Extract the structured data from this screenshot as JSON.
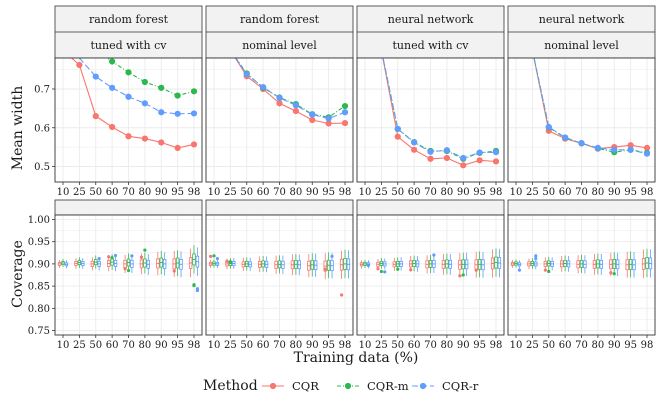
{
  "chart_data": {
    "type": "faceted line and box plot",
    "x_ticks": [
      "10",
      "25",
      "50",
      "60",
      "70",
      "80",
      "90",
      "95",
      "98"
    ],
    "x_label": "Training data (%)",
    "y_labels": {
      "width": "Mean width",
      "coverage": "Coverage"
    },
    "width_ylim": [
      0.46,
      0.78
    ],
    "width_ticks": [
      "0.5",
      "0.6",
      "0.7"
    ],
    "coverage_ylim": [
      0.74,
      1.01
    ],
    "coverage_ticks": [
      "0.75",
      "0.80",
      "0.85",
      "0.90",
      "0.95",
      "1.00"
    ],
    "legend": {
      "title": "Method",
      "items": [
        {
          "name": "CQR",
          "color": "#F8766D",
          "dash": "solid"
        },
        {
          "name": "CQR-m",
          "color": "#2DB84E",
          "dash": "dashdot"
        },
        {
          "name": "CQR-r",
          "color": "#619CFF",
          "dash": "longdash"
        }
      ]
    },
    "facets": [
      {
        "model": "random forest",
        "setting": "tuned with cv",
        "width": [
          {
            "method": "CQR",
            "x": [
              25,
              50,
              60,
              70,
              80,
              90,
              95,
              98
            ],
            "y": [
              0.762,
              0.63,
              0.602,
              0.578,
              0.572,
              0.562,
              0.548,
              0.557
            ],
            "lead": 0.8
          },
          {
            "method": "CQR-m",
            "x": [
              60,
              70,
              80,
              90,
              95,
              98
            ],
            "y": [
              0.771,
              0.743,
              0.718,
              0.703,
              0.683,
              0.694
            ],
            "lead": 0.8
          },
          {
            "method": "CQR-r",
            "x": [
              50,
              60,
              70,
              80,
              90,
              95,
              98
            ],
            "y": [
              0.732,
              0.703,
              0.68,
              0.663,
              0.64,
              0.636,
              0.637
            ],
            "lead": 0.78
          }
        ],
        "coverage": [
          {
            "method": "CQR",
            "med": [
              0.9,
              0.901,
              0.9,
              0.901,
              0.9,
              0.9,
              0.901,
              0.9,
              0.902
            ],
            "out": [
              [
                60,
                0.916
              ],
              [
                70,
                0.889
              ],
              [
                80,
                0.915
              ],
              [
                95,
                0.884
              ]
            ]
          },
          {
            "method": "CQR-m",
            "med": [
              0.902,
              0.903,
              0.904,
              0.904,
              0.903,
              0.902,
              0.903,
              0.902,
              0.91
            ],
            "out": [
              [
                60,
                0.914
              ],
              [
                80,
                0.931
              ],
              [
                70,
                0.885
              ],
              [
                98,
                0.853
              ],
              [
                98,
                0.851
              ]
            ]
          },
          {
            "method": "CQR-r",
            "med": [
              0.899,
              0.901,
              0.9,
              0.901,
              0.9,
              0.899,
              0.9,
              0.899,
              0.905
            ],
            "out": [
              [
                50,
                0.912
              ],
              [
                60,
                0.919
              ],
              [
                70,
                0.918
              ],
              [
                98,
                0.84
              ],
              [
                98,
                0.844
              ]
            ]
          }
        ]
      },
      {
        "model": "random forest",
        "setting": "nominal level",
        "width": [
          {
            "method": "CQR",
            "x": [
              50,
              60,
              70,
              80,
              90,
              95,
              98
            ],
            "y": [
              0.733,
              0.7,
              0.663,
              0.643,
              0.62,
              0.611,
              0.612
            ],
            "lead": 0.8
          },
          {
            "method": "CQR-m",
            "x": [
              50,
              60,
              70,
              80,
              90,
              95,
              98
            ],
            "y": [
              0.74,
              0.703,
              0.678,
              0.661,
              0.635,
              0.627,
              0.656
            ],
            "lead": 0.8
          },
          {
            "method": "CQR-r",
            "x": [
              50,
              60,
              70,
              80,
              90,
              95,
              98
            ],
            "y": [
              0.738,
              0.705,
              0.677,
              0.658,
              0.634,
              0.624,
              0.64
            ],
            "lead": 0.8
          }
        ],
        "coverage": [
          {
            "method": "CQR",
            "med": [
              0.9,
              0.9,
              0.899,
              0.899,
              0.898,
              0.898,
              0.896,
              0.895,
              0.898
            ],
            "out": [
              [
                10,
                0.917
              ],
              [
                25,
                0.906
              ],
              [
                95,
                0.888
              ],
              [
                98,
                0.83
              ]
            ]
          },
          {
            "method": "CQR-m",
            "med": [
              0.901,
              0.901,
              0.9,
              0.9,
              0.899,
              0.899,
              0.898,
              0.897,
              0.9
            ],
            "out": [
              [
                10,
                0.918
              ],
              [
                25,
                0.905
              ]
            ]
          },
          {
            "method": "CQR-r",
            "med": [
              0.9,
              0.901,
              0.899,
              0.899,
              0.898,
              0.898,
              0.897,
              0.896,
              0.899
            ],
            "out": [
              [
                10,
                0.912
              ],
              [
                95,
                0.917
              ]
            ]
          }
        ]
      },
      {
        "model": "neural network",
        "setting": "tuned with cv",
        "width": [
          {
            "method": "CQR",
            "x": [
              50,
              60,
              70,
              80,
              90,
              95,
              98
            ],
            "y": [
              0.577,
              0.543,
              0.52,
              0.522,
              0.503,
              0.516,
              0.513
            ],
            "lead": 0.8
          },
          {
            "method": "CQR-m",
            "x": [
              50,
              60,
              70,
              80,
              90,
              95,
              98
            ],
            "y": [
              0.597,
              0.563,
              0.54,
              0.54,
              0.52,
              0.535,
              0.54
            ],
            "lead": 0.8
          },
          {
            "method": "CQR-r",
            "x": [
              50,
              60,
              70,
              80,
              90,
              95,
              98
            ],
            "y": [
              0.597,
              0.562,
              0.538,
              0.542,
              0.522,
              0.536,
              0.537
            ],
            "lead": 0.8
          }
        ],
        "coverage": [
          {
            "method": "CQR",
            "med": [
              0.899,
              0.899,
              0.899,
              0.9,
              0.899,
              0.899,
              0.898,
              0.898,
              0.901
            ],
            "out": [
              [
                25,
                0.889
              ],
              [
                60,
                0.887
              ],
              [
                90,
                0.873
              ],
              [
                95,
                0.886
              ]
            ]
          },
          {
            "method": "CQR-m",
            "med": [
              0.9,
              0.901,
              0.9,
              0.901,
              0.9,
              0.9,
              0.899,
              0.899,
              0.903
            ],
            "out": [
              [
                25,
                0.883
              ],
              [
                50,
                0.888
              ],
              [
                90,
                0.875
              ]
            ]
          },
          {
            "method": "CQR-r",
            "med": [
              0.899,
              0.9,
              0.9,
              0.9,
              0.9,
              0.899,
              0.899,
              0.898,
              0.902
            ],
            "out": [
              [
                10,
                0.897
              ],
              [
                70,
                0.92
              ],
              [
                25,
                0.882
              ]
            ]
          }
        ]
      },
      {
        "model": "neural network",
        "setting": "nominal level",
        "width": [
          {
            "method": "CQR",
            "x": [
              50,
              60,
              70,
              80,
              90,
              95,
              98
            ],
            "y": [
              0.592,
              0.572,
              0.56,
              0.546,
              0.55,
              0.555,
              0.548
            ],
            "lead": 0.8
          },
          {
            "method": "CQR-m",
            "x": [
              50,
              60,
              70,
              80,
              90,
              95,
              98
            ],
            "y": [
              0.601,
              0.574,
              0.56,
              0.547,
              0.537,
              0.543,
              0.535
            ],
            "lead": 0.8
          },
          {
            "method": "CQR-r",
            "x": [
              50,
              60,
              70,
              80,
              90,
              95,
              98
            ],
            "y": [
              0.602,
              0.575,
              0.56,
              0.548,
              0.543,
              0.543,
              0.533
            ],
            "lead": 0.8
          }
        ],
        "coverage": [
          {
            "method": "CQR",
            "med": [
              0.9,
              0.9,
              0.9,
              0.9,
              0.899,
              0.899,
              0.899,
              0.898,
              0.9
            ],
            "out": [
              [
                50,
                0.886
              ],
              [
                90,
                0.88
              ]
            ]
          },
          {
            "method": "CQR-m",
            "med": [
              0.901,
              0.901,
              0.901,
              0.901,
              0.9,
              0.9,
              0.9,
              0.899,
              0.902
            ],
            "out": [
              [
                50,
                0.883
              ],
              [
                90,
                0.878
              ]
            ]
          },
          {
            "method": "CQR-r",
            "med": [
              0.899,
              0.9,
              0.9,
              0.9,
              0.899,
              0.899,
              0.899,
              0.898,
              0.901
            ],
            "out": [
              [
                10,
                0.886
              ],
              [
                25,
                0.918
              ],
              [
                25,
                0.912
              ]
            ]
          }
        ]
      }
    ]
  }
}
